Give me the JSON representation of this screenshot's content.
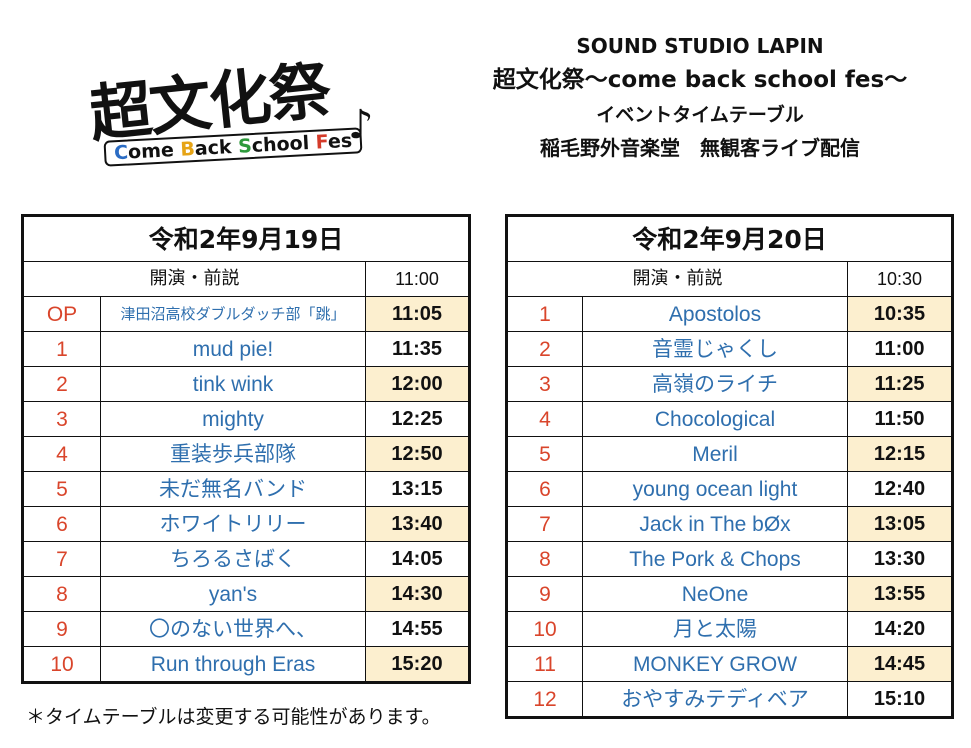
{
  "logo": {
    "title": "超文化祭",
    "subtitle_parts": [
      "C",
      "ome ",
      "B",
      "ack ",
      "S",
      "chool ",
      "F",
      "es"
    ],
    "note_glyph": "♪"
  },
  "header": {
    "line1": "SOUND STUDIO LAPIN",
    "line2": "超文化祭〜come back school fes〜",
    "line3": "イベントタイムテーブル",
    "line4": "稲毛野外音楽堂　無観客ライブ配信"
  },
  "day1": {
    "date": "令和2年9月19日",
    "mc_label": "開演・前説",
    "mc_time": "11:00",
    "rows": [
      {
        "num": "OP",
        "name": "津田沼高校ダブルダッチ部「跳」",
        "time": "11:05"
      },
      {
        "num": "1",
        "name": "mud pie!",
        "time": "11:35"
      },
      {
        "num": "2",
        "name": "tink wink",
        "time": "12:00"
      },
      {
        "num": "3",
        "name": "mighty",
        "time": "12:25"
      },
      {
        "num": "4",
        "name": "重装歩兵部隊",
        "time": "12:50"
      },
      {
        "num": "5",
        "name": "未だ無名バンド",
        "time": "13:15"
      },
      {
        "num": "6",
        "name": "ホワイトリリー",
        "time": "13:40"
      },
      {
        "num": "7",
        "name": "ちろるさばく",
        "time": "14:05"
      },
      {
        "num": "8",
        "name": "yan's",
        "time": "14:30"
      },
      {
        "num": "9",
        "name": "〇のない世界へ、",
        "time": "14:55"
      },
      {
        "num": "10",
        "name": "Run through Eras",
        "time": "15:20"
      }
    ]
  },
  "day2": {
    "date": "令和2年9月20日",
    "mc_label": "開演・前説",
    "mc_time": "10:30",
    "rows": [
      {
        "num": "1",
        "name": "Apostolos",
        "time": "10:35"
      },
      {
        "num": "2",
        "name": "音霊じゃくし",
        "time": "11:00"
      },
      {
        "num": "3",
        "name": "高嶺のライチ",
        "time": "11:25"
      },
      {
        "num": "4",
        "name": "Chocological",
        "time": "11:50"
      },
      {
        "num": "5",
        "name": "Meril",
        "time": "12:15"
      },
      {
        "num": "6",
        "name": "young ocean light",
        "time": "12:40"
      },
      {
        "num": "7",
        "name": "Jack in The bØx",
        "time": "13:05"
      },
      {
        "num": "8",
        "name": "The Pork & Chops",
        "time": "13:30"
      },
      {
        "num": "9",
        "name": "NeOne",
        "time": "13:55"
      },
      {
        "num": "10",
        "name": "月と太陽",
        "time": "14:20"
      },
      {
        "num": "11",
        "name": "MONKEY GROW",
        "time": "14:45"
      },
      {
        "num": "12",
        "name": "おやすみテディベア",
        "time": "15:10"
      }
    ]
  },
  "footnote": "＊タイムテーブルは変更する可能性があります。",
  "colors": {
    "number": "#d9452b",
    "artist": "#2f6fae",
    "time_highlight": "#fcefcf"
  }
}
